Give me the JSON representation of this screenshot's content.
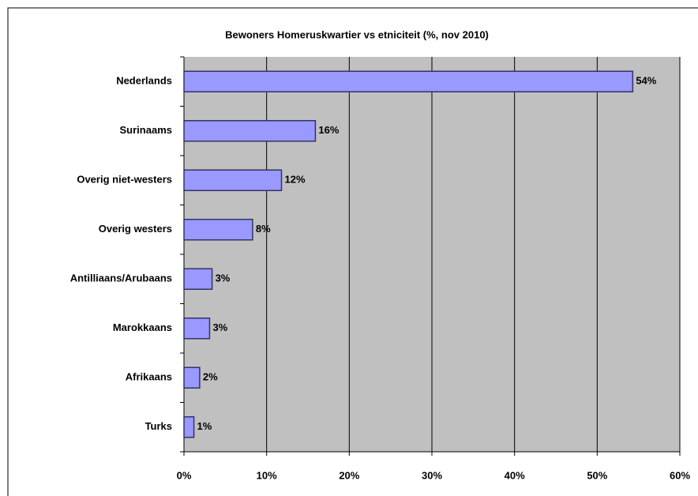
{
  "chart_data": {
    "type": "bar",
    "orientation": "horizontal",
    "title": "Bewoners Homeruskwartier vs etniciteit (%, nov 2010)",
    "categories": [
      "Nederlands",
      "Surinaams",
      "Overig niet-westers",
      "Overig westers",
      "Antilliaans/Arubaans",
      "Marokkaans",
      "Afrikaans",
      "Turks"
    ],
    "values": [
      54.3,
      15.9,
      11.8,
      8.3,
      3.4,
      3.1,
      1.9,
      1.2
    ],
    "value_labels": [
      "54%",
      "16%",
      "12%",
      "8%",
      "3%",
      "3%",
      "2%",
      "1%"
    ],
    "color": "#9999ff",
    "xlim": [
      0,
      60
    ],
    "xticks": [
      {
        "value": 0,
        "label": "0%"
      },
      {
        "value": 10,
        "label": "10%"
      },
      {
        "value": 20,
        "label": "20%"
      },
      {
        "value": 30,
        "label": "30%"
      },
      {
        "value": 40,
        "label": "40%"
      },
      {
        "value": 50,
        "label": "50%"
      },
      {
        "value": 60,
        "label": "60%"
      }
    ],
    "grid": true
  }
}
